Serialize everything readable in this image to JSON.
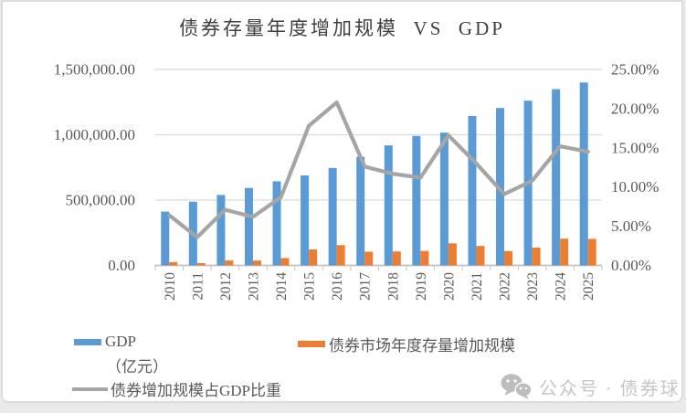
{
  "chart_data": {
    "type": "combo-bar-line",
    "title": "债券存量年度增加规模  VS  GDP",
    "categories": [
      "2010",
      "2011",
      "2012",
      "2013",
      "2014",
      "2015",
      "2016",
      "2017",
      "2018",
      "2019",
      "2020",
      "2021",
      "2022",
      "2023",
      "2024",
      "2025"
    ],
    "series": [
      {
        "name": "GDP（亿元）",
        "type": "bar",
        "axis": "left",
        "color": "#5B9BD5",
        "values": [
          412000,
          488000,
          539000,
          593000,
          644000,
          689000,
          746000,
          832000,
          919000,
          991000,
          1016000,
          1144000,
          1205000,
          1261000,
          1349000,
          1400000
        ]
      },
      {
        "name": "债券市场年度存量增加规模",
        "type": "bar",
        "axis": "left",
        "color": "#ED7D31",
        "values": [
          26000,
          17500,
          38000,
          37000,
          56000,
          122000,
          155000,
          105000,
          107000,
          111000,
          169000,
          149000,
          110000,
          136000,
          205000,
          203000
        ]
      },
      {
        "name": "债券增加规模占GDP比重",
        "type": "line",
        "axis": "right",
        "color": "#A5A5A5",
        "values": [
          6.4,
          3.6,
          7.1,
          6.2,
          8.7,
          17.8,
          20.8,
          12.6,
          11.7,
          11.2,
          16.6,
          13.0,
          9.1,
          10.8,
          15.2,
          14.5
        ]
      }
    ],
    "left_axis": {
      "min": 0,
      "max": 1500000,
      "ticks": [
        "1,500,000.00",
        "1,000,000.00",
        "500,000.00",
        "0.00"
      ]
    },
    "right_axis": {
      "min": 0,
      "max": 25,
      "ticks": [
        "25.00%",
        "20.00%",
        "15.00%",
        "10.00%",
        "5.00%",
        "0.00%"
      ]
    },
    "grid": true,
    "legend_position": "bottom",
    "colors": {
      "grid": "#D9D9D9",
      "axis": "#C3C3C3",
      "text": "#595959"
    }
  },
  "legend": {
    "gdp_line1": "GDP",
    "gdp_line2": "（亿元）",
    "bond_label": "债券市场年度存量增加规模",
    "ratio_label": "债券增加规模占GDP比重"
  },
  "watermark": {
    "icon": "wechat-icon",
    "text": "公众号 · 债券球"
  }
}
